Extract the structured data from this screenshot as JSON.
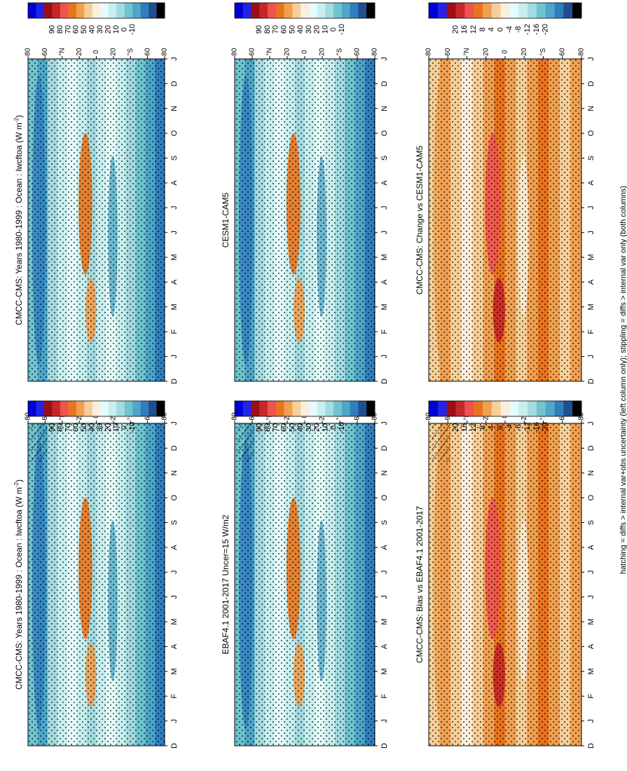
{
  "figure_note": "hatching = diffs > internal var+obs uncertainty (left column only); stippling = diffs > internal var only (both columns)",
  "colors": {
    "abs_levels": [
      90,
      80,
      70,
      60,
      50,
      40,
      30,
      20,
      10,
      0,
      -10
    ],
    "abs_palette": [
      "#0000d6",
      "#2323e8",
      "#9a0e1a",
      "#c62828",
      "#ef5350",
      "#e8741e",
      "#f0a050",
      "#f6cf98",
      "#fbeedd",
      "#e6fbfb",
      "#c8eff0",
      "#a3dbe0",
      "#6fc4d0",
      "#4da7c7",
      "#2f7ec0",
      "#1f4f90",
      "#000000"
    ],
    "diff_levels": [
      20,
      16,
      12,
      8,
      4,
      0,
      -4,
      -8,
      -12,
      -16,
      -20
    ],
    "diff_palette": [
      "#0000d6",
      "#2323e8",
      "#9a0e1a",
      "#c62828",
      "#ef5350",
      "#e8741e",
      "#f0a050",
      "#f6cf98",
      "#fbeedd",
      "#e6fbfb",
      "#c8eff0",
      "#a3dbe0",
      "#6fc4d0",
      "#4da7c7",
      "#2f7ec0",
      "#1f4f90",
      "#000000"
    ]
  },
  "chart_data": [
    {
      "type": "heatmap",
      "panel": "left-top",
      "title": "CMCC-CMS: Years 1980-1999 : Ocean : lwcftoa (W m",
      "title_sup": "-2",
      "title_end": ")",
      "x_ticks": [
        "D",
        "J",
        "F",
        "M",
        "A",
        "M",
        "J",
        "J",
        "A",
        "S",
        "O",
        "N",
        "D",
        "J"
      ],
      "y_ticks": [
        "80",
        "60",
        "°N",
        "20",
        "0",
        "20",
        "°S",
        "60",
        "80"
      ],
      "colorbar": "abs",
      "hatching": true,
      "stippling": true
    },
    {
      "type": "heatmap",
      "panel": "right-top",
      "title": "CMCC-CMS: Years 1980-1999 : Ocean : lwcftoa (W m",
      "title_sup": "-2",
      "title_end": ")",
      "x_ticks": [
        "D",
        "J",
        "F",
        "M",
        "A",
        "M",
        "J",
        "J",
        "A",
        "S",
        "O",
        "N",
        "D",
        "J"
      ],
      "y_ticks": [
        "80",
        "60",
        "°N",
        "20",
        "0",
        "20",
        "°S",
        "60",
        "80"
      ],
      "colorbar": "abs",
      "hatching": false,
      "stippling": true
    },
    {
      "type": "heatmap",
      "panel": "left-middle",
      "title": "EBAF4.1 2001-2017 Uncer=15 W/m2",
      "x_ticks": [
        "D",
        "J",
        "F",
        "M",
        "A",
        "M",
        "J",
        "J",
        "A",
        "S",
        "O",
        "N",
        "D",
        "J"
      ],
      "y_ticks": [
        "80",
        "60",
        "°N",
        "20",
        "0",
        "20",
        "°S",
        "60",
        "80"
      ],
      "colorbar": "abs",
      "hatching": true,
      "stippling": true
    },
    {
      "type": "heatmap",
      "panel": "right-middle",
      "title": "CESM1-CAM5",
      "x_ticks": [
        "D",
        "J",
        "F",
        "M",
        "A",
        "M",
        "J",
        "J",
        "A",
        "S",
        "O",
        "N",
        "D",
        "J"
      ],
      "y_ticks": [
        "80",
        "60",
        "°N",
        "20",
        "0",
        "20",
        "°S",
        "60",
        "80"
      ],
      "colorbar": "abs",
      "hatching": false,
      "stippling": true
    },
    {
      "type": "heatmap",
      "panel": "left-bottom",
      "title": "CMCC-CMS: Bias vs EBAF4.1 2001-2017",
      "x_ticks": [
        "D",
        "J",
        "F",
        "M",
        "A",
        "M",
        "J",
        "J",
        "A",
        "S",
        "O",
        "N",
        "D",
        "J"
      ],
      "y_ticks": [
        "80",
        "60",
        "°N",
        "20",
        "0",
        "20",
        "°S",
        "60",
        "80"
      ],
      "colorbar": "diff",
      "hatching": true,
      "stippling": true
    },
    {
      "type": "heatmap",
      "panel": "right-bottom",
      "title": "CMCC-CMS: Change vs CESM1-CAM5",
      "x_ticks": [
        "D",
        "J",
        "F",
        "M",
        "A",
        "M",
        "J",
        "J",
        "A",
        "S",
        "O",
        "N",
        "D",
        "J"
      ],
      "y_ticks": [
        "80",
        "60",
        "°N",
        "20",
        "0",
        "20",
        "°S",
        "60",
        "80"
      ],
      "colorbar": "diff",
      "hatching": false,
      "stippling": true
    }
  ]
}
